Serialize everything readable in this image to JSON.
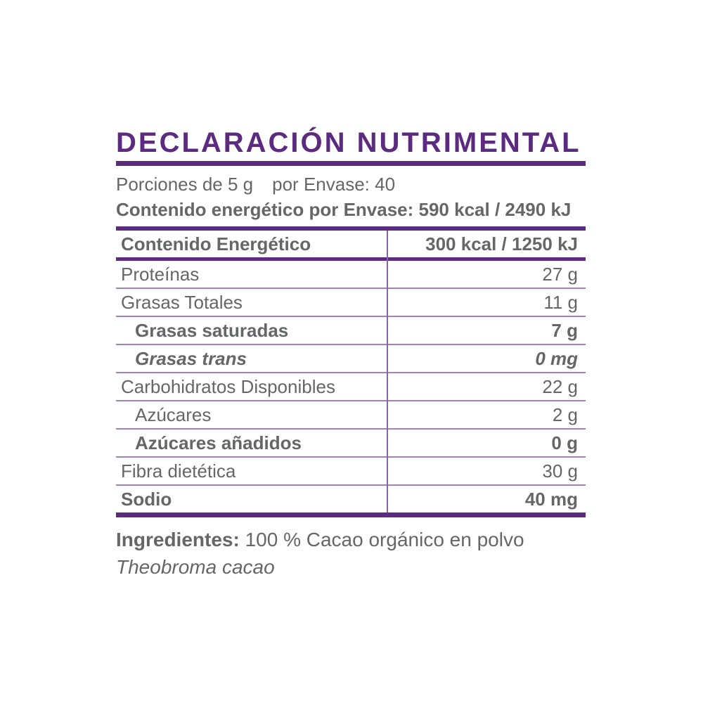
{
  "colors": {
    "purple": "#5C2B80",
    "row_line": "#A27FBE",
    "divider": "#8B63AC",
    "text": "#656669"
  },
  "title": "DECLARACIÓN NUTRIMENTAL",
  "serving_info": {
    "portions": "Porciones de 5 g",
    "per_package": "por Envase: 40"
  },
  "energy_per_package": "Contenido energético por Envase: 590 kcal / 2490 kJ",
  "table": {
    "header": {
      "name": "Contenido Energético",
      "value": "300 kcal / 1250 kJ"
    },
    "rows": [
      {
        "name": "Proteínas",
        "value": "27 g",
        "style": "regular",
        "indent": false
      },
      {
        "name": "Grasas Totales",
        "value": "11 g",
        "style": "regular",
        "indent": false
      },
      {
        "name": "Grasas saturadas",
        "value": "7 g",
        "style": "bold",
        "indent": true
      },
      {
        "name": "Grasas trans",
        "value": "0 mg",
        "style": "bold-italic",
        "indent": true
      },
      {
        "name": "Carbohidratos Disponibles",
        "value": "22 g",
        "style": "regular",
        "indent": false
      },
      {
        "name": "Azúcares",
        "value": "2 g",
        "style": "regular",
        "indent": true
      },
      {
        "name": "Azúcares añadidos",
        "value": "0 g",
        "style": "bold",
        "indent": true
      },
      {
        "name": "Fibra dietética",
        "value": "30 g",
        "style": "regular",
        "indent": false
      },
      {
        "name": "Sodio",
        "value": "40 mg",
        "style": "bold",
        "indent": false
      }
    ]
  },
  "ingredients": {
    "label": "Ingredientes:",
    "text": "100 % Cacao orgánico en polvo",
    "scientific_name": "Theobroma cacao"
  }
}
